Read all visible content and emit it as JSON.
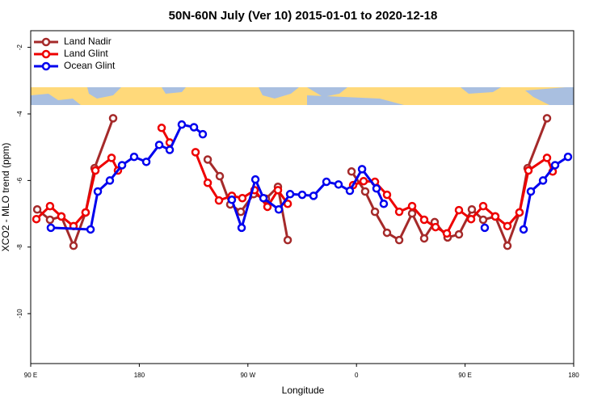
{
  "chart_data": {
    "type": "line",
    "title": "50N-60N July (Ver 10)   2015-01-01 to 2020-12-18",
    "xlabel": "Longitude",
    "ylabel": "XCO2 - MLO trend (ppm)",
    "xlim": [
      90,
      540
    ],
    "xticks": [
      {
        "value": 90,
        "label": "90 E"
      },
      180,
      {
        "value": 270,
        "label": "90 W"
      },
      {
        "value": 360,
        "label": "0"
      },
      {
        "value": 450,
        "label": "90 E"
      },
      {
        "value": 540,
        "label": "180"
      }
    ],
    "ylim": [
      -11.5,
      -1.5
    ],
    "yticks": [
      -2,
      -4,
      -6,
      -8,
      -10
    ],
    "legend": "top-left",
    "series": [
      {
        "name": "Land Nadir",
        "color": "#a52a2a",
        "x": [
          95.4,
          106,
          115.4,
          125.5,
          135.5,
          142.9,
          158.3,
          null,
          236.7,
          246.7,
          255.4,
          264.1,
          274.8,
          284.9,
          294.9,
          303,
          null,
          355.9,
          367.2,
          375.3,
          385.3,
          395.4,
          406.1,
          416.1,
          424.8,
          435.5,
          444.9,
          455.6,
          465,
          475,
          485.1,
          495.1,
          501.8,
          517.9
        ],
        "values": [
          -6.87,
          -7.18,
          -7.08,
          -7.96,
          -6.96,
          -5.63,
          -4.13,
          null,
          -5.37,
          -5.87,
          -6.72,
          -6.94,
          -6.41,
          -6.55,
          -6.19,
          -7.79,
          null,
          -5.73,
          -6.33,
          -6.94,
          -7.57,
          -7.79,
          -6.99,
          -7.74,
          -7.25,
          -7.71,
          -7.62,
          -6.87,
          -7.18,
          -7.08,
          -7.96,
          -6.96,
          -5.63,
          -4.13
        ]
      },
      {
        "name": "Land Glint",
        "color": "#ee0000",
        "x": [
          94.7,
          106,
          115.4,
          125.5,
          135.5,
          143.6,
          157,
          162.3,
          null,
          198.5,
          205.2,
          null,
          226.6,
          236.7,
          246,
          256.7,
          265.4,
          275.5,
          286.2,
          294.9,
          303,
          null,
          357.2,
          365.9,
          375.3,
          385.3,
          395.4,
          406.1,
          416.1,
          425.5,
          434.9,
          444.9,
          455,
          465,
          475,
          485.1,
          495.1,
          502.5,
          517.9,
          522.6
        ],
        "values": [
          -7.16,
          -6.77,
          -7.08,
          -7.37,
          -6.96,
          -5.7,
          -5.32,
          -5.7,
          null,
          -4.42,
          -4.86,
          null,
          -5.15,
          -6.07,
          -6.6,
          -6.46,
          -6.53,
          -6.29,
          -6.79,
          -6.29,
          -6.7,
          null,
          -6.14,
          -6.02,
          -6.04,
          -6.43,
          -6.94,
          -6.77,
          -7.18,
          -7.4,
          -7.59,
          -6.89,
          -7.16,
          -6.77,
          -7.08,
          -7.37,
          -6.96,
          -5.7,
          -5.32,
          -5.73
        ]
      },
      {
        "name": "Ocean Glint",
        "color": "#0000ee",
        "x": [
          106.7,
          139.6,
          145.6,
          155.6,
          165.7,
          175.7,
          185.8,
          196.5,
          205.2,
          215.2,
          225.3,
          232.6,
          null,
          256.7,
          264.8,
          276.2,
          282.9,
          295.6,
          305,
          315,
          324.4,
          335.1,
          345.1,
          354.5,
          364.6,
          376.6,
          382.6,
          null,
          466.3,
          null,
          498.5,
          504.5,
          514.6,
          524.6,
          535.3
        ],
        "values": [
          -7.42,
          -7.47,
          -6.33,
          -6,
          -5.54,
          -5.29,
          -5.44,
          -4.93,
          -5.08,
          -4.32,
          -4.4,
          -4.61,
          null,
          -6.58,
          -7.42,
          -5.97,
          -6.53,
          -6.87,
          -6.41,
          -6.43,
          -6.46,
          -6.04,
          -6.12,
          -6.31,
          -5.66,
          -6.24,
          -6.7,
          null,
          -7.42,
          null,
          -7.47,
          -6.33,
          -6,
          -5.54,
          -5.29
        ]
      }
    ]
  }
}
